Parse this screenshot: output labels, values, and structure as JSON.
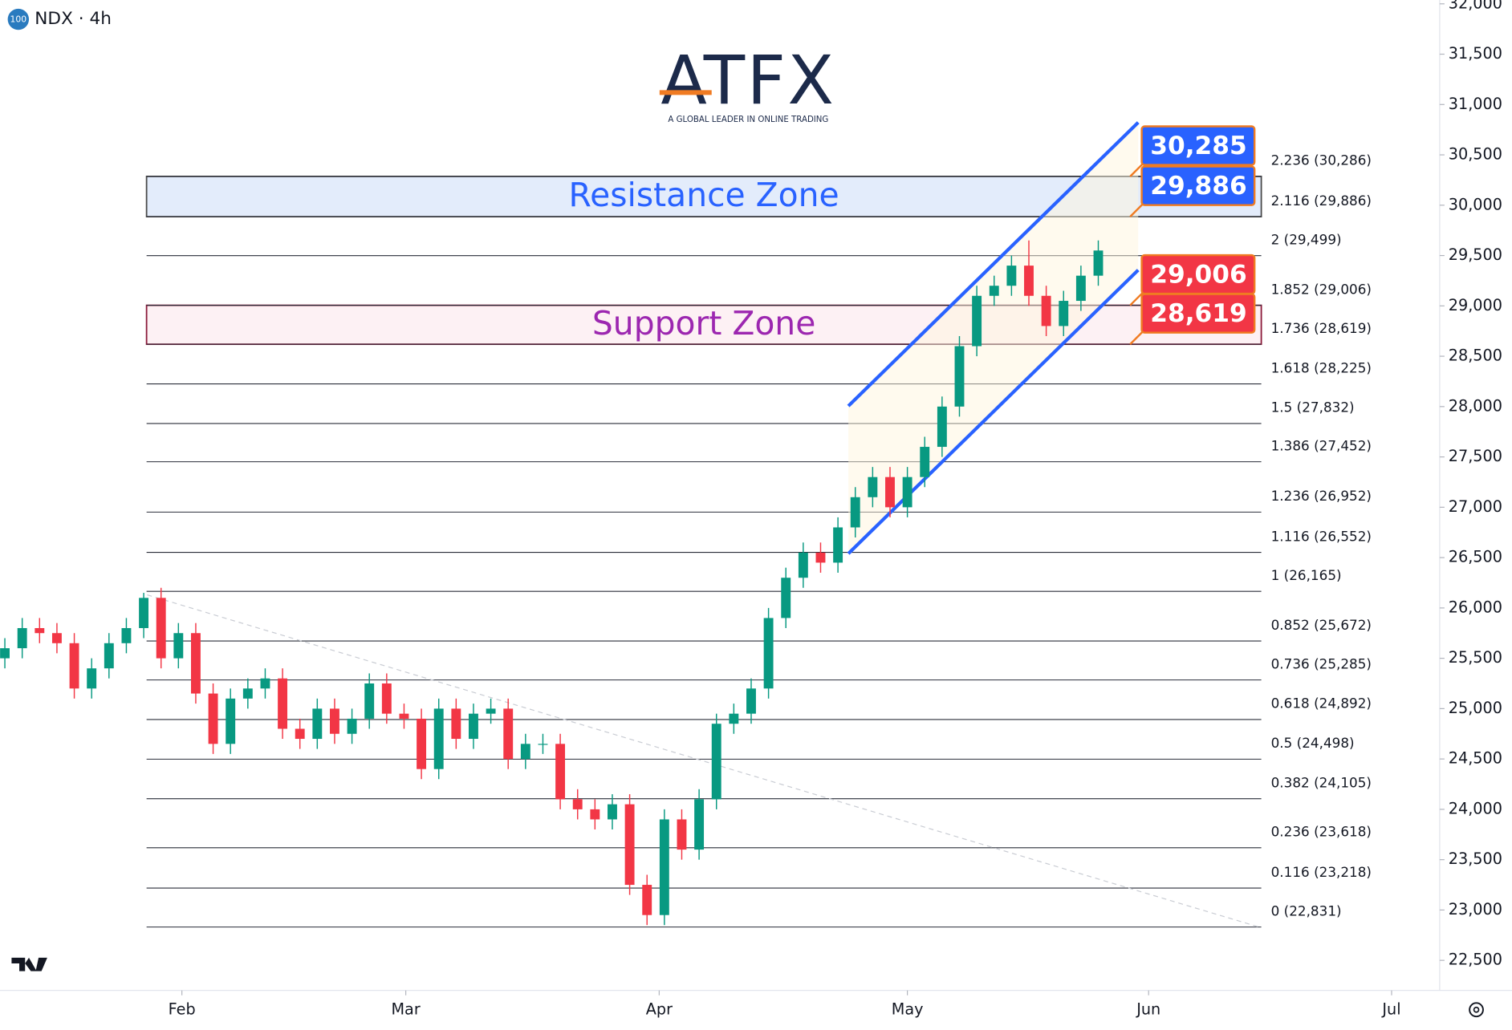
{
  "chart_data": {
    "type": "candlestick",
    "title": "NDX · 4h",
    "badge": "100",
    "logo": {
      "text": "ATFX",
      "tagline": "A GLOBAL LEADER IN ONLINE TRADING"
    },
    "up_color": "#089981",
    "down_color": "#f23645",
    "candles": {
      "x": [
        0,
        1,
        2,
        3,
        4,
        5,
        6,
        7,
        8,
        9,
        10,
        11,
        12,
        13,
        14,
        15,
        16,
        17,
        18,
        19,
        20,
        21,
        22,
        23,
        24,
        25,
        26,
        27,
        28,
        29,
        30,
        31,
        32,
        33,
        34,
        35,
        36,
        37,
        38,
        39,
        40,
        41,
        42,
        43,
        44,
        45,
        46,
        47,
        48,
        49,
        50,
        51,
        52,
        53,
        54,
        55,
        56,
        57,
        58,
        59,
        60,
        61,
        62,
        63
      ],
      "open": [
        25500,
        25600,
        25800,
        25750,
        25650,
        25200,
        25400,
        25650,
        25800,
        26100,
        25500,
        25750,
        25150,
        24650,
        25100,
        25200,
        25300,
        24800,
        24700,
        25000,
        24750,
        24900,
        25250,
        24950,
        24900,
        24400,
        25000,
        24700,
        24950,
        25000,
        24500,
        24650,
        24650,
        24100,
        24000,
        23900,
        24050,
        23250,
        22950,
        23900,
        23600,
        24100,
        24850,
        24950,
        25200,
        25900,
        26300,
        26550,
        26450,
        26800,
        27100,
        27300,
        27000,
        27300,
        27600,
        28000,
        28600,
        29100,
        29200,
        29400,
        29100,
        28800,
        29050,
        29300
      ],
      "high": [
        25700,
        25900,
        25900,
        25850,
        25750,
        25500,
        25750,
        25900,
        26150,
        26200,
        25850,
        25850,
        25250,
        25200,
        25300,
        25400,
        25400,
        24900,
        25100,
        25100,
        25000,
        25350,
        25350,
        25050,
        25000,
        25100,
        25100,
        25050,
        25100,
        25100,
        24750,
        24750,
        24750,
        24200,
        24100,
        24150,
        24150,
        23350,
        24000,
        24000,
        24200,
        24950,
        25050,
        25300,
        26000,
        26400,
        26650,
        26650,
        26900,
        27200,
        27400,
        27400,
        27400,
        27700,
        28100,
        28700,
        29200,
        29300,
        29500,
        29650,
        29200,
        29150,
        29400,
        29650
      ],
      "low": [
        25400,
        25500,
        25650,
        25550,
        25100,
        25100,
        25300,
        25550,
        25700,
        25400,
        25400,
        25050,
        24550,
        24550,
        25000,
        25100,
        24700,
        24600,
        24600,
        24650,
        24650,
        24800,
        24850,
        24800,
        24300,
        24300,
        24600,
        24600,
        24850,
        24400,
        24400,
        24550,
        24000,
        23900,
        23800,
        23800,
        23150,
        22850,
        22850,
        23500,
        23500,
        24000,
        24750,
        24850,
        25100,
        25800,
        26200,
        26350,
        26350,
        26700,
        27000,
        26900,
        26900,
        27200,
        27500,
        27900,
        28500,
        29000,
        29100,
        29000,
        28700,
        28700,
        28950,
        29200
      ],
      "close": [
        25600,
        25800,
        25750,
        25650,
        25200,
        25400,
        25650,
        25800,
        26100,
        25500,
        25750,
        25150,
        24650,
        25100,
        25200,
        25300,
        24800,
        24700,
        25000,
        24750,
        24900,
        25250,
        24950,
        24900,
        24400,
        25000,
        24700,
        24950,
        25000,
        24500,
        24650,
        24650,
        24100,
        24000,
        23900,
        24050,
        23250,
        22950,
        23900,
        23600,
        24100,
        24850,
        24950,
        25200,
        25900,
        26300,
        26550,
        26450,
        26800,
        27100,
        27300,
        27000,
        27300,
        27600,
        28000,
        28600,
        29100,
        29200,
        29400,
        29100,
        28800,
        29050,
        29300,
        29550
      ]
    },
    "xlim": [
      -0.28,
      82.67
    ],
    "xticks": [
      {
        "value": 10.2,
        "label": "Feb"
      },
      {
        "value": 23.1,
        "label": "Mar"
      },
      {
        "value": 37.7,
        "label": "Apr"
      },
      {
        "value": 52,
        "label": "May"
      },
      {
        "value": 65.9,
        "label": "Jun"
      },
      {
        "value": 79.9,
        "label": "Jul"
      }
    ],
    "ylim": [
      22201,
      32038
    ],
    "yticks": [
      {
        "value": 22500,
        "label": "22,500"
      },
      {
        "value": 23000,
        "label": "23,000"
      },
      {
        "value": 23500,
        "label": "23,500"
      },
      {
        "value": 24000,
        "label": "24,000"
      },
      {
        "value": 24500,
        "label": "24,500"
      },
      {
        "value": 25000,
        "label": "25,000"
      },
      {
        "value": 25500,
        "label": "25,500"
      },
      {
        "value": 26000,
        "label": "26,000"
      },
      {
        "value": 26500,
        "label": "26,500"
      },
      {
        "value": 27000,
        "label": "27,000"
      },
      {
        "value": 27500,
        "label": "27,500"
      },
      {
        "value": 28000,
        "label": "28,000"
      },
      {
        "value": 28500,
        "label": "28,500"
      },
      {
        "value": 29000,
        "label": "29,000"
      },
      {
        "value": 29500,
        "label": "29,500"
      },
      {
        "value": 30000,
        "label": "30,000"
      },
      {
        "value": 30500,
        "label": "30,500"
      },
      {
        "value": 31000,
        "label": "31,000"
      },
      {
        "value": 31500,
        "label": "31,500"
      },
      {
        "value": 32000,
        "label": "32,000"
      }
    ],
    "fib_levels": [
      {
        "value": 22831,
        "label": "0 (22,831)"
      },
      {
        "value": 23218,
        "label": "0.116 (23,218)"
      },
      {
        "value": 23618,
        "label": "0.236 (23,618)"
      },
      {
        "value": 24105,
        "label": "0.382 (24,105)"
      },
      {
        "value": 24498,
        "label": "0.5 (24,498)"
      },
      {
        "value": 24892,
        "label": "0.618 (24,892)"
      },
      {
        "value": 25285,
        "label": "0.736 (25,285)"
      },
      {
        "value": 25672,
        "label": "0.852 (25,672)"
      },
      {
        "value": 26165,
        "label": "1 (26,165)"
      },
      {
        "value": 26552,
        "label": "1.116 (26,552)"
      },
      {
        "value": 26952,
        "label": "1.236 (26,952)"
      },
      {
        "value": 27452,
        "label": "1.386 (27,452)"
      },
      {
        "value": 27832,
        "label": "1.5 (27,832)"
      },
      {
        "value": 28225,
        "label": "1.618 (28,225)"
      },
      {
        "value": 28619,
        "label": "1.736 (28,619)"
      },
      {
        "value": 29006,
        "label": "1.852 (29,006)"
      },
      {
        "value": 29499,
        "label": "2 (29,499)"
      },
      {
        "value": 29886,
        "label": "2.116 (29,886)"
      },
      {
        "value": 30286,
        "label": "2.236 (30,286)"
      }
    ],
    "zones": [
      {
        "label": "Resistance Zone",
        "from": 29886,
        "to": 30286,
        "fill": "#e3ecfb",
        "stroke": "#4a4a4a",
        "text_color": "#2962ff"
      },
      {
        "label": "Support Zone",
        "from": 28619,
        "to": 29006,
        "fill": "#fdf1f4",
        "stroke": "#8b1a3a",
        "text_color": "#9c27b0"
      }
    ],
    "price_tags": [
      {
        "value": 30285,
        "label": "30,285",
        "color": "#2962ff"
      },
      {
        "value": 29886,
        "label": "29,886",
        "color": "#2962ff"
      },
      {
        "value": 29006,
        "label": "29,006",
        "color": "#f23645"
      },
      {
        "value": 28619,
        "label": "28,619",
        "color": "#f23645"
      }
    ],
    "channel": {
      "color": "#2962ff",
      "upper": [
        [
          48.6,
          28006
        ],
        [
          65.3,
          30822
        ]
      ],
      "lower": [
        [
          48.6,
          26540
        ],
        [
          65.3,
          29356
        ]
      ]
    },
    "trendline": [
      [
        8.2,
        26130
      ],
      [
        72.4,
        22824
      ]
    ]
  }
}
